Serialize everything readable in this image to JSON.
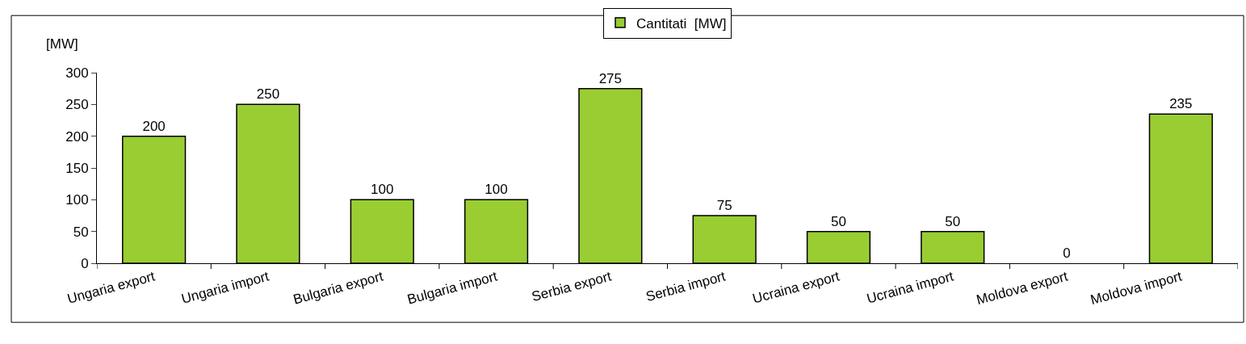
{
  "chart_data": {
    "type": "bar",
    "categories": [
      "Ungaria export",
      "Ungaria import",
      "Bulgaria export",
      "Bulgaria import",
      "Serbia export",
      "Serbia import",
      "Ucraina export",
      "Ucraina import",
      "Moldova export",
      "Moldova import"
    ],
    "series": [
      {
        "name": "Cantitati  [MW]",
        "color": "#9acd32",
        "values": [
          200,
          250,
          100,
          100,
          275,
          75,
          50,
          50,
          0,
          235
        ]
      }
    ],
    "ylabel": "[MW]",
    "ylim": [
      0,
      300
    ],
    "yticks": [
      0,
      50,
      100,
      150,
      200,
      250,
      300
    ],
    "data_labels": true,
    "legend": "top"
  }
}
